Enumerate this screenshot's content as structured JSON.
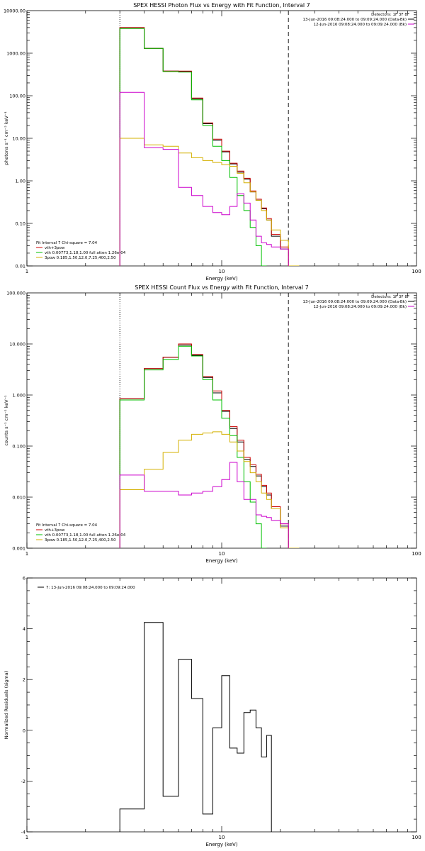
{
  "chart_data": [
    {
      "type": "line",
      "title": "SPEX HESSI Photon Flux vs Energy with Fit Function, Interval 7",
      "xlabel": "Energy (keV)",
      "ylabel": "photons s⁻¹ cm⁻² keV⁻¹",
      "xscale": "log",
      "yscale": "log",
      "xlim": [
        1,
        100
      ],
      "ylim": [
        0.01,
        10000
      ],
      "x_ticks": [
        "1",
        "10",
        "100"
      ],
      "y_ticks": [
        "0.01",
        "0.10",
        "1.00",
        "10.00",
        "100.00",
        "1000.00",
        "10000.00"
      ],
      "legend_top": {
        "header": "Detectors: 1F 3F 8F",
        "entries": [
          {
            "label": "13-Jun-2016 09:08:24.000 to 09:09:24.000 (Data-Bk)",
            "color": "#000000"
          },
          {
            "label": "12-Jun-2016 09:08:24.000 to 09:09:24.000 (Bk)",
            "color": "#cc00cc"
          }
        ]
      },
      "legend_bottom": {
        "header": "Fit Interval  7    Chi-square = 7.04",
        "entries": [
          {
            "label": "vth+3pow",
            "color": "#cc0000"
          },
          {
            "label": "vth 0.00773,1.18,1.00  full atten 1.26e-04",
            "color": "#00c000"
          },
          {
            "label": "3pow 0.185,1.50,12.0,7.25,400,2.50",
            "color": "#d4b000"
          }
        ]
      },
      "vlines": [
        {
          "x": 3.0,
          "style": "dotted"
        },
        {
          "x": 22.0,
          "style": "dashed"
        }
      ],
      "edges": [
        3.0,
        4.0,
        5.0,
        6.0,
        7.0,
        8.0,
        9.0,
        10.0,
        11.0,
        12.0,
        13.0,
        14.0,
        15.0,
        16.0,
        17.0,
        18.0,
        20.0,
        22.0,
        25.0
      ],
      "series": [
        {
          "color": "#000000",
          "values": [
            4000,
            1300,
            380,
            370,
            85,
            22,
            9,
            4.8,
            2.5,
            1.6,
            1.1,
            0.55,
            0.35,
            0.22,
            0.12,
            0.05,
            0.025,
            null
          ]
        },
        {
          "color": "#cc0000",
          "values": [
            4000,
            1300,
            380,
            380,
            88,
            23,
            9.5,
            5.0,
            2.6,
            1.7,
            1.15,
            0.58,
            0.37,
            0.23,
            0.13,
            0.055,
            0.028,
            null
          ]
        },
        {
          "color": "#00c000",
          "values": [
            3800,
            1300,
            370,
            360,
            80,
            20,
            6.5,
            3.0,
            1.2,
            0.45,
            0.2,
            0.08,
            0.03,
            0.01,
            null,
            null,
            null,
            null
          ]
        },
        {
          "color": "#d4b000",
          "values": [
            10,
            7,
            6.5,
            4.5,
            3.5,
            3.0,
            2.7,
            2.4,
            2.2,
            1.5,
            0.9,
            0.55,
            0.35,
            0.2,
            0.12,
            0.07,
            0.04,
            0.01
          ]
        },
        {
          "color": "#cc00cc",
          "values": [
            120,
            6,
            5.5,
            0.7,
            0.45,
            0.25,
            0.18,
            0.16,
            0.25,
            0.5,
            0.3,
            0.12,
            0.05,
            0.035,
            0.032,
            0.028,
            0.025,
            null
          ]
        }
      ]
    },
    {
      "type": "line",
      "title": "SPEX HESSI Count Flux vs Energy with Fit Function, Interval 7",
      "xlabel": "Energy (keV)",
      "ylabel": "counts s⁻¹ cm⁻² keV⁻¹",
      "xscale": "log",
      "yscale": "log",
      "xlim": [
        1,
        100
      ],
      "ylim": [
        0.001,
        100
      ],
      "x_ticks": [
        "1",
        "10",
        "100"
      ],
      "y_ticks": [
        "0.001",
        "0.010",
        "0.100",
        "1.000",
        "10.000",
        "100.000"
      ],
      "legend_top": {
        "header": "Detectors: 1F 3F 8F",
        "entries": [
          {
            "label": "13-Jun-2016 09:08:24.000 to 09:09:24.000 (Data-Bk)",
            "color": "#000000"
          },
          {
            "label": "12-Jun-2016 09:08:24.000 to 09:09:24.000 (Bk)",
            "color": "#cc00cc"
          }
        ]
      },
      "legend_bottom": {
        "header": "Fit Interval  7    Chi-square = 7.04",
        "entries": [
          {
            "label": "vth+3pow",
            "color": "#cc0000"
          },
          {
            "label": "vth 0.00773,1.18,1.00  full atten 1.26e-04",
            "color": "#00c000"
          },
          {
            "label": "3pow 0.185,1.50,12.0,7.25,400,2.50",
            "color": "#d4b000"
          }
        ]
      },
      "vlines": [
        {
          "x": 3.0,
          "style": "dotted"
        },
        {
          "x": 22.0,
          "style": "dashed"
        }
      ],
      "edges": [
        3.0,
        4.0,
        5.0,
        6.0,
        7.0,
        8.0,
        9.0,
        10.0,
        11.0,
        12.0,
        13.0,
        14.0,
        15.0,
        16.0,
        17.0,
        18.0,
        20.0,
        22.0,
        25.0
      ],
      "series": [
        {
          "color": "#000000",
          "values": [
            0.85,
            3.3,
            5.5,
            9.5,
            6.0,
            2.2,
            1.1,
            0.48,
            0.22,
            0.12,
            0.055,
            0.04,
            0.026,
            0.016,
            0.011,
            0.006,
            0.0027,
            null
          ]
        },
        {
          "color": "#cc0000",
          "values": [
            0.85,
            3.3,
            5.5,
            10,
            6.2,
            2.3,
            1.2,
            0.5,
            0.24,
            0.13,
            0.06,
            0.043,
            0.028,
            0.017,
            0.012,
            0.0065,
            0.003,
            null
          ]
        },
        {
          "color": "#00c000",
          "values": [
            0.8,
            3.1,
            5.0,
            9.0,
            5.8,
            2.0,
            0.8,
            0.35,
            0.16,
            0.06,
            0.02,
            0.008,
            0.003,
            0.001,
            null,
            null,
            null,
            null
          ]
        },
        {
          "color": "#d4b000",
          "values": [
            0.014,
            0.035,
            0.075,
            0.13,
            0.17,
            0.18,
            0.19,
            0.17,
            0.12,
            0.08,
            0.05,
            0.03,
            0.02,
            0.012,
            0.009,
            0.006,
            0.0025,
            0.001
          ]
        },
        {
          "color": "#cc00cc",
          "values": [
            0.027,
            0.013,
            0.013,
            0.011,
            0.012,
            0.013,
            0.016,
            0.022,
            0.048,
            0.02,
            0.009,
            0.009,
            0.0045,
            0.0042,
            0.004,
            0.0035,
            0.003,
            null
          ]
        }
      ]
    },
    {
      "type": "line",
      "title": "",
      "xlabel": "Energy (keV)",
      "ylabel": "Normalized Residuals (sigma)",
      "xscale": "log",
      "yscale": "linear",
      "xlim": [
        1,
        100
      ],
      "ylim": [
        -4,
        6
      ],
      "x_ticks": [
        "1",
        "10",
        "100"
      ],
      "y_ticks": [
        "-4",
        "-2",
        "0",
        "2",
        "4",
        "6"
      ],
      "legend_top": {
        "header": "",
        "entries": [
          {
            "label": "7: 13-Jun-2016 09:08:24.000 to 09:09:24.000",
            "color": "#000000"
          }
        ]
      },
      "edges": [
        3.0,
        4.0,
        5.0,
        6.0,
        7.0,
        8.0,
        9.0,
        10.0,
        11.0,
        12.0,
        13.0,
        14.0,
        15.0,
        16.0,
        17.0,
        18.0,
        20.0,
        22.0
      ],
      "series": [
        {
          "color": "#000000",
          "values": [
            -3.1,
            4.25,
            -2.6,
            2.8,
            1.25,
            -3.3,
            0.1,
            2.15,
            -0.7,
            -0.9,
            0.7,
            0.8,
            0.1,
            -1.05,
            -0.2,
            null,
            null
          ]
        }
      ]
    }
  ]
}
